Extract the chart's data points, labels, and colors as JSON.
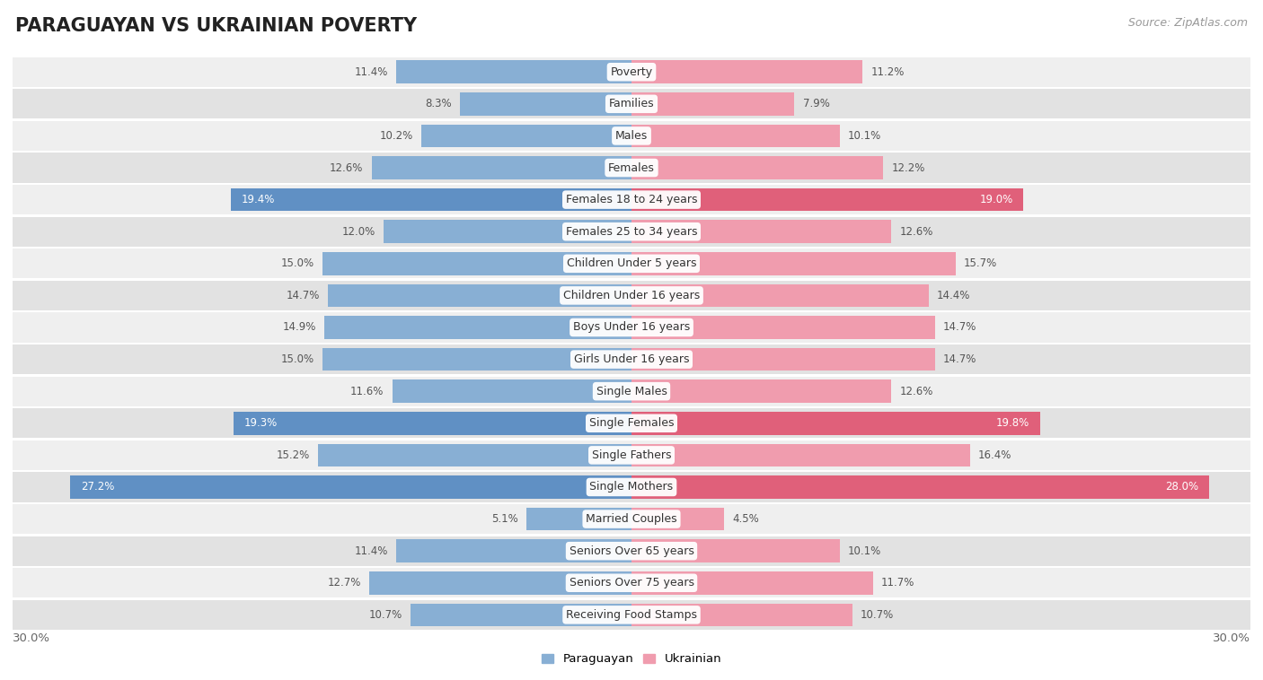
{
  "title": "PARAGUAYAN VS UKRAINIAN POVERTY",
  "source": "Source: ZipAtlas.com",
  "categories": [
    "Poverty",
    "Families",
    "Males",
    "Females",
    "Females 18 to 24 years",
    "Females 25 to 34 years",
    "Children Under 5 years",
    "Children Under 16 years",
    "Boys Under 16 years",
    "Girls Under 16 years",
    "Single Males",
    "Single Females",
    "Single Fathers",
    "Single Mothers",
    "Married Couples",
    "Seniors Over 65 years",
    "Seniors Over 75 years",
    "Receiving Food Stamps"
  ],
  "paraguayan": [
    11.4,
    8.3,
    10.2,
    12.6,
    19.4,
    12.0,
    15.0,
    14.7,
    14.9,
    15.0,
    11.6,
    19.3,
    15.2,
    27.2,
    5.1,
    11.4,
    12.7,
    10.7
  ],
  "ukrainian": [
    11.2,
    7.9,
    10.1,
    12.2,
    19.0,
    12.6,
    15.7,
    14.4,
    14.7,
    14.7,
    12.6,
    19.8,
    16.4,
    28.0,
    4.5,
    10.1,
    11.7,
    10.7
  ],
  "paraguayan_color": "#88afd4",
  "ukrainian_color": "#f09cae",
  "paraguayan_highlight_color": "#6090c4",
  "ukrainian_highlight_color": "#e0607a",
  "highlight_rows": [
    4,
    11,
    13
  ],
  "row_bg_even": "#efefef",
  "row_bg_odd": "#e2e2e2",
  "row_separator": "#ffffff",
  "xlim": 30,
  "bar_height": 0.72,
  "title_fontsize": 15,
  "label_fontsize": 9,
  "value_fontsize": 8.5,
  "tick_fontsize": 9.5,
  "source_fontsize": 9
}
